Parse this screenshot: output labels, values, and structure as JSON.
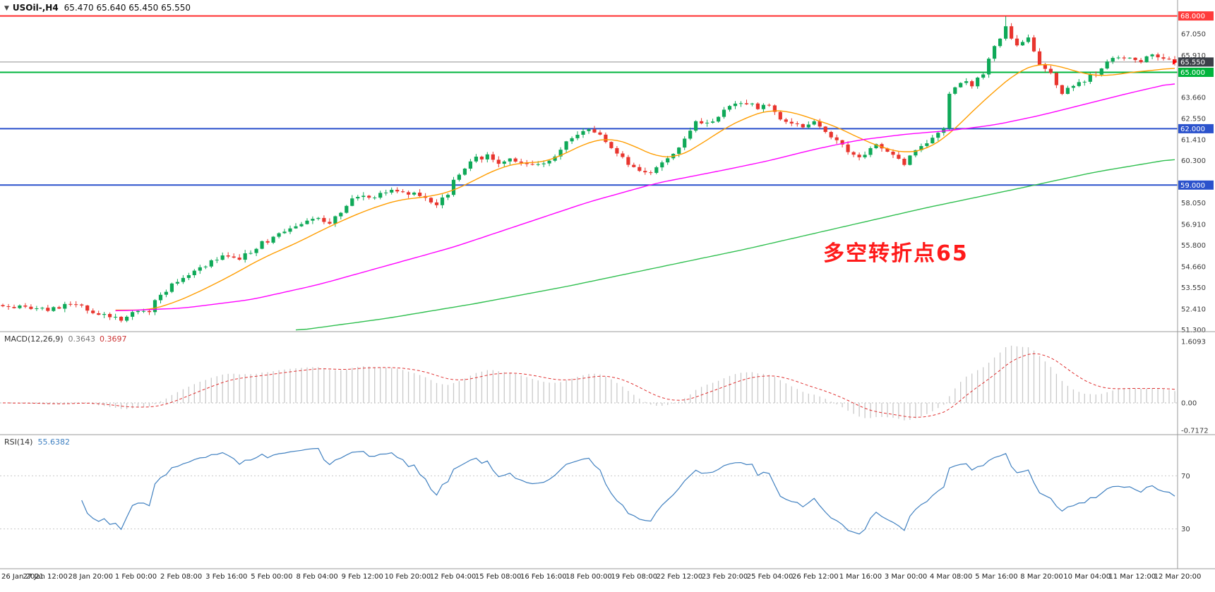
{
  "header": {
    "shift_icon": "▼",
    "symbol": "USOil-,H4",
    "ohlc": "65.470 65.640 65.450 65.550"
  },
  "annotation": {
    "text": "多空转折点65",
    "color": "#ff1a1a"
  },
  "indicators": {
    "macd": {
      "label": "MACD(12,26,9)",
      "value_main": "0.3643",
      "value_signal": "0.3697"
    },
    "rsi": {
      "label": "RSI(14)",
      "value": "55.6382"
    }
  },
  "chart_data": [
    {
      "type": "candlestick",
      "title": "USOil-,H4",
      "symbol": "USOil-",
      "timeframe": "H4",
      "ohlc_current": {
        "open": 65.47,
        "high": 65.64,
        "low": 65.45,
        "close": 65.55
      },
      "bars": 209,
      "bars_per_label": 8,
      "x_labels": [
        "26 Jan 2021",
        "27 Jan 12:00",
        "28 Jan 20:00",
        "1 Feb 00:00",
        "2 Feb 08:00",
        "3 Feb 16:00",
        "5 Feb 00:00",
        "8 Feb 04:00",
        "9 Feb 12:00",
        "10 Feb 20:00",
        "12 Feb 04:00",
        "15 Feb 08:00",
        "16 Feb 16:00",
        "18 Feb 00:00",
        "19 Feb 08:00",
        "22 Feb 12:00",
        "23 Feb 20:00",
        "25 Feb 04:00",
        "26 Feb 12:00",
        "1 Mar 16:00",
        "3 Mar 00:00",
        "4 Mar 08:00",
        "5 Mar 16:00",
        "8 Mar 20:00",
        "10 Mar 04:00",
        "11 Mar 12:00",
        "12 Mar 20:00"
      ],
      "y_range": [
        51.2,
        68.85
      ],
      "y_ticks": [
        67.05,
        65.91,
        63.66,
        62.55,
        61.41,
        60.3,
        58.05,
        56.91,
        55.8,
        54.66,
        53.55,
        52.41,
        51.3
      ],
      "up_color": "#0fa958",
      "down_color": "#e8352e",
      "noise": 0.13,
      "spike": {
        "bar": 178,
        "high": 67.98
      },
      "hlines": [
        {
          "price": 68.0,
          "label": "68.000",
          "color": "#ff2d2d",
          "width": 2,
          "badge_bg": "#ff3b3b"
        },
        {
          "price": 65.55,
          "label": "65.550",
          "color": "#909090",
          "width": 1,
          "badge_bg": "#3c4048"
        },
        {
          "price": 65.0,
          "label": "65.000",
          "color": "#00b43c",
          "width": 2,
          "badge_bg": "#00b43c"
        },
        {
          "price": 62.0,
          "label": "62.000",
          "color": "#2b52cc",
          "width": 2,
          "badge_bg": "#2b52cc"
        },
        {
          "price": 59.0,
          "label": "59.000",
          "color": "#2b52cc",
          "width": 2,
          "badge_bg": "#2b52cc"
        }
      ],
      "price_path": [
        [
          0,
          52.45
        ],
        [
          4,
          52.55
        ],
        [
          8,
          52.35
        ],
        [
          12,
          52.65
        ],
        [
          16,
          52.3
        ],
        [
          19,
          52.0
        ],
        [
          21,
          51.85
        ],
        [
          23,
          52.2
        ],
        [
          26,
          52.35
        ],
        [
          28,
          53.2
        ],
        [
          32,
          54.15
        ],
        [
          36,
          54.75
        ],
        [
          40,
          55.3
        ],
        [
          42,
          55.05
        ],
        [
          46,
          55.9
        ],
        [
          48,
          56.2
        ],
        [
          52,
          56.85
        ],
        [
          56,
          57.2
        ],
        [
          58,
          57.0
        ],
        [
          62,
          58.3
        ],
        [
          64,
          58.55
        ],
        [
          66,
          58.3
        ],
        [
          68,
          58.65
        ],
        [
          72,
          58.6
        ],
        [
          75,
          58.35
        ],
        [
          77,
          58.05
        ],
        [
          79,
          58.6
        ],
        [
          80,
          59.35
        ],
        [
          83,
          60.3
        ],
        [
          86,
          60.55
        ],
        [
          88,
          60.15
        ],
        [
          90,
          60.5
        ],
        [
          93,
          60.0
        ],
        [
          96,
          60.15
        ],
        [
          98,
          60.6
        ],
        [
          101,
          61.6
        ],
        [
          104,
          62.0
        ],
        [
          106,
          61.7
        ],
        [
          109,
          60.6
        ],
        [
          112,
          59.9
        ],
        [
          114,
          59.6
        ],
        [
          117,
          60.1
        ],
        [
          120,
          61.0
        ],
        [
          123,
          62.3
        ],
        [
          126,
          62.5
        ],
        [
          128,
          62.9
        ],
        [
          131,
          63.45
        ],
        [
          134,
          63.1
        ],
        [
          136,
          63.3
        ],
        [
          138,
          62.6
        ],
        [
          141,
          62.15
        ],
        [
          144,
          62.3
        ],
        [
          147,
          61.6
        ],
        [
          150,
          60.8
        ],
        [
          152,
          60.4
        ],
        [
          155,
          61.2
        ],
        [
          158,
          60.6
        ],
        [
          160,
          60.1
        ],
        [
          162,
          60.9
        ],
        [
          164,
          61.3
        ],
        [
          166,
          61.7
        ],
        [
          167,
          61.9
        ],
        [
          168,
          63.95
        ],
        [
          170,
          64.5
        ],
        [
          172,
          64.3
        ],
        [
          174,
          65.0
        ],
        [
          176,
          66.3
        ],
        [
          178,
          67.4
        ],
        [
          180,
          66.4
        ],
        [
          182,
          66.9
        ],
        [
          184,
          65.4
        ],
        [
          186,
          64.9
        ],
        [
          188,
          63.9
        ],
        [
          190,
          64.2
        ],
        [
          192,
          64.55
        ],
        [
          194,
          65.0
        ],
        [
          196,
          65.5
        ],
        [
          198,
          65.9
        ],
        [
          200,
          65.8
        ],
        [
          202,
          65.6
        ],
        [
          204,
          65.95
        ],
        [
          206,
          65.7
        ],
        [
          208,
          65.55
        ]
      ],
      "moving_averages": [
        {
          "name": "ma-fast",
          "color": "#ff9d00",
          "points": [
            [
              20,
              52.35
            ],
            [
              26,
              52.35
            ],
            [
              30,
              52.7
            ],
            [
              34,
              53.2
            ],
            [
              40,
              54.1
            ],
            [
              46,
              55.1
            ],
            [
              52,
              55.9
            ],
            [
              58,
              56.8
            ],
            [
              64,
              57.6
            ],
            [
              70,
              58.2
            ],
            [
              76,
              58.4
            ],
            [
              80,
              58.7
            ],
            [
              84,
              59.3
            ],
            [
              88,
              59.9
            ],
            [
              92,
              60.2
            ],
            [
              96,
              60.2
            ],
            [
              100,
              60.7
            ],
            [
              104,
              61.3
            ],
            [
              108,
              61.5
            ],
            [
              112,
              61.1
            ],
            [
              116,
              60.5
            ],
            [
              120,
              60.5
            ],
            [
              124,
              61.2
            ],
            [
              128,
              62.0
            ],
            [
              132,
              62.6
            ],
            [
              136,
              63.0
            ],
            [
              140,
              62.9
            ],
            [
              144,
              62.5
            ],
            [
              148,
              62.1
            ],
            [
              152,
              61.5
            ],
            [
              156,
              61.0
            ],
            [
              160,
              60.7
            ],
            [
              164,
              60.9
            ],
            [
              168,
              61.7
            ],
            [
              172,
              62.9
            ],
            [
              176,
              64.0
            ],
            [
              180,
              65.0
            ],
            [
              184,
              65.5
            ],
            [
              188,
              65.3
            ],
            [
              192,
              64.9
            ],
            [
              196,
              64.8
            ],
            [
              200,
              65.0
            ],
            [
              204,
              65.1
            ],
            [
              208,
              65.25
            ]
          ]
        },
        {
          "name": "ma-mid",
          "color": "#ff00ff",
          "points": [
            [
              20,
              52.3
            ],
            [
              32,
              52.45
            ],
            [
              44,
              52.9
            ],
            [
              56,
              53.7
            ],
            [
              68,
              54.7
            ],
            [
              80,
              55.7
            ],
            [
              92,
              56.9
            ],
            [
              104,
              58.1
            ],
            [
              116,
              59.1
            ],
            [
              128,
              59.8
            ],
            [
              136,
              60.3
            ],
            [
              144,
              60.9
            ],
            [
              152,
              61.4
            ],
            [
              160,
              61.7
            ],
            [
              168,
              61.9
            ],
            [
              176,
              62.2
            ],
            [
              184,
              62.7
            ],
            [
              192,
              63.3
            ],
            [
              200,
              63.9
            ],
            [
              208,
              64.45
            ]
          ]
        },
        {
          "name": "ma-slow",
          "color": "#2fbf4f",
          "points": [
            [
              52,
              51.25
            ],
            [
              68,
              51.9
            ],
            [
              84,
              52.7
            ],
            [
              100,
              53.6
            ],
            [
              116,
              54.6
            ],
            [
              132,
              55.6
            ],
            [
              148,
              56.7
            ],
            [
              164,
              57.8
            ],
            [
              180,
              58.8
            ],
            [
              194,
              59.7
            ],
            [
              208,
              60.4
            ]
          ]
        }
      ],
      "marker": {
        "shape": "price-arrow",
        "color": "#ff0000",
        "price": 65.55
      }
    },
    {
      "type": "line",
      "name": "MACD(12,26,9)",
      "params": {
        "fast": 12,
        "slow": 26,
        "signal": 9
      },
      "value_main": 0.3643,
      "value_signal": 0.3697,
      "y_ticks": [
        1.6093,
        0.0,
        -0.7172
      ],
      "histogram_color": "#c9c9c9",
      "signal_color": "#e03131",
      "derived_from": "main closes"
    },
    {
      "type": "line",
      "name": "RSI(14)",
      "period": 14,
      "value": 55.6382,
      "levels": [
        70,
        30
      ],
      "y_ticks": [
        70,
        30
      ],
      "color": "#4080c0"
    }
  ]
}
